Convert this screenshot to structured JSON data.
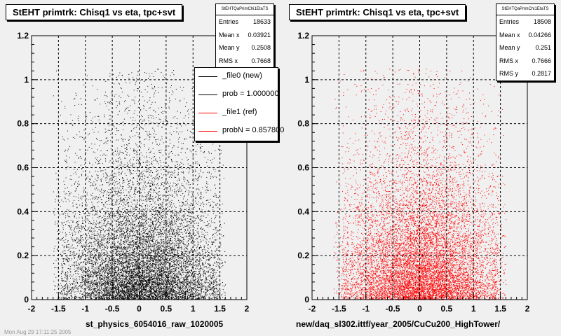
{
  "left": {
    "title": "StEHT primtrk: Chisq1 vs eta, tpc+svt",
    "stats": {
      "name": "StEHTQaPrimChi1EtaTS",
      "rows": [
        {
          "label": "Entries",
          "value": "18633"
        },
        {
          "label": "Mean x",
          "value": "0.03921"
        },
        {
          "label": "Mean y",
          "value": "0.2508"
        },
        {
          "label": "RMS x",
          "value": "0.7668"
        }
      ]
    },
    "legend": [
      {
        "label": "_file0 (new)",
        "color": "#000000"
      },
      {
        "label": "prob = 1.000000",
        "color": "#000000"
      },
      {
        "label": "_file1 (ref)",
        "color": "#ff0000"
      },
      {
        "label": "probN = 0.857800",
        "color": "#ff0000"
      }
    ],
    "xcaption": "st_physics_6054016_raw_1020005",
    "footnote": "Mon Aug 29 17:11:25 2005"
  },
  "right": {
    "title": "StEHT primtrk: Chisq1 vs eta, tpc+svt",
    "stats": {
      "name": "StEHTQaPrimChi1EtaTS",
      "rows": [
        {
          "label": "Entries",
          "value": "18508"
        },
        {
          "label": "Mean x",
          "value": "0.04266"
        },
        {
          "label": "Mean y",
          "value": "0.251"
        },
        {
          "label": "RMS x",
          "value": "0.7666"
        },
        {
          "label": "RMS y",
          "value": "0.2817"
        }
      ]
    },
    "xcaption": "new/daq_sl302.ittf/year_2005/CuCu200_HighTower/"
  },
  "chart_data": [
    {
      "type": "scatter",
      "title": "StEHT primtrk: Chisq1 vs eta, tpc+svt",
      "xlabel": "st_physics_6054016_raw_1020005",
      "ylabel": "",
      "xlim": [
        -2,
        2
      ],
      "ylim": [
        0,
        1.2
      ],
      "x_ticks": [
        "-2",
        "-1.5",
        "-1",
        "-0.5",
        "0",
        "0.5",
        "1",
        "1.5",
        "2"
      ],
      "y_ticks": [
        "0",
        "0.2",
        "0.4",
        "0.6",
        "0.8",
        "1",
        "1.2"
      ],
      "grid": true,
      "point_color": "#000000",
      "series": [
        {
          "name": "_file0 (new)",
          "entries": 18633,
          "mean_x": 0.03921,
          "mean_y": 0.2508,
          "rms_x": 0.7668
        }
      ],
      "legend_position": "top-right"
    },
    {
      "type": "scatter",
      "title": "StEHT primtrk: Chisq1 vs eta, tpc+svt",
      "xlabel": "new/daq_sl302.ittf/year_2005/CuCu200_HighTower/",
      "ylabel": "",
      "xlim": [
        -2,
        2
      ],
      "ylim": [
        0,
        1.2
      ],
      "x_ticks": [
        "-2",
        "-1.5",
        "-1",
        "-0.5",
        "0",
        "0.5",
        "1",
        "1.5",
        "2"
      ],
      "y_ticks": [
        "0",
        "0.2",
        "0.4",
        "0.6",
        "0.8",
        "1",
        "1.2"
      ],
      "grid": true,
      "point_color": "#ff0000",
      "series": [
        {
          "name": "_file1 (ref)",
          "entries": 18508,
          "mean_x": 0.04266,
          "mean_y": 0.251,
          "rms_x": 0.7666,
          "rms_y": 0.2817
        }
      ]
    }
  ]
}
